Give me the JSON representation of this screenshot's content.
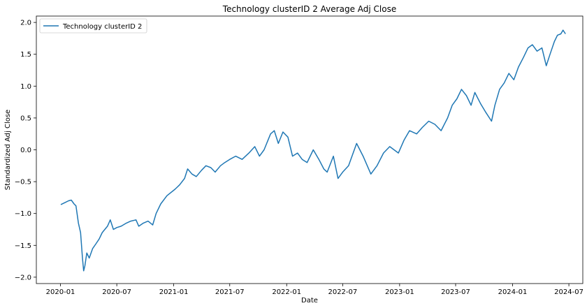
{
  "chart_data": {
    "type": "line",
    "title": "Technology clusterID 2 Average Adj Close",
    "xlabel": "Date",
    "ylabel": "Standardized Adj Close",
    "xlim": [
      "2019-10-15",
      "2024-08-15"
    ],
    "ylim": [
      -2.1,
      2.1
    ],
    "x_ticks": [
      "2020-01",
      "2020-07",
      "2021-01",
      "2021-07",
      "2022-01",
      "2022-07",
      "2023-01",
      "2023-07",
      "2024-01",
      "2024-07"
    ],
    "y_ticks": [
      "−2.0",
      "−1.5",
      "−1.0",
      "−0.5",
      "0.0",
      "0.5",
      "1.0",
      "1.5",
      "2.0"
    ],
    "y_tick_values": [
      -2.0,
      -1.5,
      -1.0,
      -0.5,
      0.0,
      0.5,
      1.0,
      1.5,
      2.0
    ],
    "grid": false,
    "legend": "top-left",
    "series": [
      {
        "name": "Technology clusterID 2",
        "color": "#1f77b4",
        "points": [
          [
            "2020-01-02",
            -0.86
          ],
          [
            "2020-01-15",
            -0.83
          ],
          [
            "2020-01-27",
            -0.8
          ],
          [
            "2020-02-05",
            -0.79
          ],
          [
            "2020-02-14",
            -0.85
          ],
          [
            "2020-02-20",
            -0.88
          ],
          [
            "2020-02-28",
            -1.15
          ],
          [
            "2020-03-06",
            -1.3
          ],
          [
            "2020-03-12",
            -1.7
          ],
          [
            "2020-03-16",
            -1.9
          ],
          [
            "2020-03-20",
            -1.82
          ],
          [
            "2020-03-26",
            -1.62
          ],
          [
            "2020-04-03",
            -1.7
          ],
          [
            "2020-04-14",
            -1.55
          ],
          [
            "2020-04-24",
            -1.48
          ],
          [
            "2020-05-05",
            -1.4
          ],
          [
            "2020-05-15",
            -1.3
          ],
          [
            "2020-06-01",
            -1.2
          ],
          [
            "2020-06-10",
            -1.1
          ],
          [
            "2020-06-20",
            -1.25
          ],
          [
            "2020-07-01",
            -1.22
          ],
          [
            "2020-07-15",
            -1.2
          ],
          [
            "2020-08-01",
            -1.15
          ],
          [
            "2020-08-15",
            -1.12
          ],
          [
            "2020-09-01",
            -1.1
          ],
          [
            "2020-09-10",
            -1.2
          ],
          [
            "2020-09-25",
            -1.15
          ],
          [
            "2020-10-10",
            -1.12
          ],
          [
            "2020-10-25",
            -1.18
          ],
          [
            "2020-11-05",
            -1.0
          ],
          [
            "2020-11-20",
            -0.85
          ],
          [
            "2020-12-10",
            -0.72
          ],
          [
            "2021-01-05",
            -0.62
          ],
          [
            "2021-01-20",
            -0.55
          ],
          [
            "2021-02-05",
            -0.45
          ],
          [
            "2021-02-15",
            -0.3
          ],
          [
            "2021-03-01",
            -0.38
          ],
          [
            "2021-03-15",
            -0.42
          ],
          [
            "2021-04-01",
            -0.32
          ],
          [
            "2021-04-15",
            -0.25
          ],
          [
            "2021-05-01",
            -0.28
          ],
          [
            "2021-05-15",
            -0.35
          ],
          [
            "2021-06-01",
            -0.25
          ],
          [
            "2021-06-15",
            -0.2
          ],
          [
            "2021-07-01",
            -0.15
          ],
          [
            "2021-07-20",
            -0.1
          ],
          [
            "2021-08-10",
            -0.15
          ],
          [
            "2021-09-01",
            -0.05
          ],
          [
            "2021-09-20",
            0.05
          ],
          [
            "2021-10-05",
            -0.1
          ],
          [
            "2021-10-20",
            0.0
          ],
          [
            "2021-11-10",
            0.25
          ],
          [
            "2021-11-22",
            0.3
          ],
          [
            "2021-12-05",
            0.1
          ],
          [
            "2021-12-20",
            0.28
          ],
          [
            "2022-01-05",
            0.2
          ],
          [
            "2022-01-20",
            -0.1
          ],
          [
            "2022-02-05",
            -0.05
          ],
          [
            "2022-02-20",
            -0.15
          ],
          [
            "2022-03-08",
            -0.2
          ],
          [
            "2022-03-28",
            0.0
          ],
          [
            "2022-04-15",
            -0.15
          ],
          [
            "2022-05-01",
            -0.3
          ],
          [
            "2022-05-12",
            -0.35
          ],
          [
            "2022-06-01",
            -0.1
          ],
          [
            "2022-06-16",
            -0.45
          ],
          [
            "2022-07-01",
            -0.35
          ],
          [
            "2022-07-20",
            -0.25
          ],
          [
            "2022-08-15",
            0.1
          ],
          [
            "2022-09-05",
            -0.1
          ],
          [
            "2022-09-30",
            -0.38
          ],
          [
            "2022-10-20",
            -0.25
          ],
          [
            "2022-11-10",
            -0.05
          ],
          [
            "2022-11-30",
            0.05
          ],
          [
            "2022-12-28",
            -0.05
          ],
          [
            "2023-01-15",
            0.15
          ],
          [
            "2023-02-02",
            0.3
          ],
          [
            "2023-02-25",
            0.25
          ],
          [
            "2023-03-15",
            0.35
          ],
          [
            "2023-04-05",
            0.45
          ],
          [
            "2023-04-25",
            0.4
          ],
          [
            "2023-05-15",
            0.3
          ],
          [
            "2023-06-05",
            0.5
          ],
          [
            "2023-06-20",
            0.7
          ],
          [
            "2023-07-05",
            0.8
          ],
          [
            "2023-07-20",
            0.95
          ],
          [
            "2023-08-05",
            0.85
          ],
          [
            "2023-08-20",
            0.7
          ],
          [
            "2023-09-01",
            0.9
          ],
          [
            "2023-09-20",
            0.72
          ],
          [
            "2023-10-05",
            0.6
          ],
          [
            "2023-10-25",
            0.45
          ],
          [
            "2023-11-05",
            0.7
          ],
          [
            "2023-11-20",
            0.95
          ],
          [
            "2023-12-05",
            1.05
          ],
          [
            "2023-12-20",
            1.2
          ],
          [
            "2024-01-05",
            1.1
          ],
          [
            "2024-01-20",
            1.3
          ],
          [
            "2024-02-05",
            1.45
          ],
          [
            "2024-02-20",
            1.6
          ],
          [
            "2024-03-05",
            1.65
          ],
          [
            "2024-03-20",
            1.55
          ],
          [
            "2024-04-05",
            1.6
          ],
          [
            "2024-04-19",
            1.32
          ],
          [
            "2024-05-01",
            1.5
          ],
          [
            "2024-05-15",
            1.7
          ],
          [
            "2024-05-25",
            1.8
          ],
          [
            "2024-06-05",
            1.82
          ],
          [
            "2024-06-12",
            1.88
          ],
          [
            "2024-06-20",
            1.82
          ]
        ]
      }
    ]
  }
}
